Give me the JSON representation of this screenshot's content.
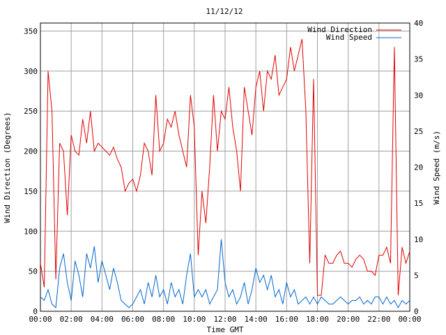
{
  "chart_data": {
    "type": "line",
    "title": "11/12/12",
    "xlabel": "Time GMT",
    "ylabel": "Wind Direction (Degrees)",
    "y2label": "Wind Speed (m/s)",
    "x_ticks": [
      "00:00",
      "02:00",
      "04:00",
      "06:00",
      "08:00",
      "10:00",
      "12:00",
      "14:00",
      "16:00",
      "18:00",
      "20:00",
      "22:00",
      "00:00"
    ],
    "ylim": [
      0,
      360
    ],
    "y_ticks": [
      0,
      50,
      100,
      150,
      200,
      250,
      300,
      350
    ],
    "y2lim": [
      0,
      40
    ],
    "y2_ticks": [
      0,
      5,
      10,
      15,
      20,
      25,
      30,
      35,
      40
    ],
    "grid": true,
    "legend_position": "top-right",
    "colors": {
      "direction": "#e00000",
      "speed": "#0066cc",
      "grid": "#a0a0a0"
    },
    "series": [
      {
        "name": "Wind Direction",
        "axis": "left",
        "x_hours": [
          0.0,
          0.25,
          0.5,
          0.75,
          1.0,
          1.25,
          1.5,
          1.75,
          2.0,
          2.25,
          2.5,
          2.75,
          3.0,
          3.25,
          3.5,
          3.75,
          4.0,
          4.25,
          4.5,
          4.75,
          5.0,
          5.25,
          5.5,
          5.75,
          6.0,
          6.25,
          6.5,
          6.75,
          7.0,
          7.25,
          7.5,
          7.75,
          8.0,
          8.25,
          8.5,
          8.75,
          9.0,
          9.25,
          9.5,
          9.75,
          10.0,
          10.25,
          10.5,
          10.75,
          11.0,
          11.25,
          11.5,
          11.75,
          12.0,
          12.25,
          12.5,
          12.75,
          13.0,
          13.25,
          13.5,
          13.75,
          14.0,
          14.25,
          14.5,
          14.75,
          15.0,
          15.25,
          15.5,
          15.75,
          16.0,
          16.25,
          16.5,
          16.75,
          17.0,
          17.25,
          17.5,
          17.75,
          18.0,
          18.25,
          18.5,
          18.75,
          19.0,
          19.25,
          19.5,
          19.75,
          20.0,
          20.25,
          20.5,
          20.75,
          21.0,
          21.25,
          21.5,
          21.75,
          22.0,
          22.25,
          22.5,
          22.75,
          23.0,
          23.25,
          23.5,
          23.75,
          24.0
        ],
        "values": [
          60,
          30,
          300,
          250,
          40,
          210,
          200,
          120,
          220,
          200,
          195,
          240,
          210,
          250,
          200,
          210,
          205,
          200,
          195,
          205,
          190,
          180,
          150,
          160,
          165,
          150,
          170,
          210,
          200,
          170,
          270,
          200,
          210,
          240,
          230,
          250,
          220,
          200,
          180,
          270,
          230,
          70,
          150,
          110,
          180,
          270,
          200,
          250,
          240,
          280,
          230,
          200,
          150,
          280,
          250,
          220,
          280,
          300,
          250,
          300,
          290,
          320,
          270,
          280,
          290,
          330,
          300,
          320,
          340,
          250,
          60,
          290,
          20,
          20,
          70,
          60,
          60,
          70,
          75,
          60,
          60,
          55,
          65,
          70,
          65,
          50,
          50,
          45,
          70,
          70,
          80,
          60,
          330,
          20,
          80,
          60,
          75
        ]
      },
      {
        "name": "Wind Speed",
        "axis": "right",
        "x_hours": [
          0.0,
          0.25,
          0.5,
          0.75,
          1.0,
          1.25,
          1.5,
          1.75,
          2.0,
          2.25,
          2.5,
          2.75,
          3.0,
          3.25,
          3.5,
          3.75,
          4.0,
          4.25,
          4.5,
          4.75,
          5.0,
          5.25,
          5.5,
          5.75,
          6.0,
          6.25,
          6.5,
          6.75,
          7.0,
          7.25,
          7.5,
          7.75,
          8.0,
          8.25,
          8.5,
          8.75,
          9.0,
          9.25,
          9.5,
          9.75,
          10.0,
          10.25,
          10.5,
          10.75,
          11.0,
          11.25,
          11.5,
          11.75,
          12.0,
          12.25,
          12.5,
          12.75,
          13.0,
          13.25,
          13.5,
          13.75,
          14.0,
          14.25,
          14.5,
          14.75,
          15.0,
          15.25,
          15.5,
          15.75,
          16.0,
          16.25,
          16.5,
          16.75,
          17.0,
          17.25,
          17.5,
          17.75,
          18.0,
          18.25,
          18.5,
          18.75,
          19.0,
          19.25,
          19.5,
          19.75,
          20.0,
          20.25,
          20.5,
          20.75,
          21.0,
          21.25,
          21.5,
          21.75,
          22.0,
          22.25,
          22.5,
          22.75,
          23.0,
          23.25,
          23.5,
          23.75,
          24.0
        ],
        "values": [
          2,
          1.5,
          3,
          1,
          0.5,
          6,
          8,
          4,
          1.5,
          7,
          5,
          2,
          8,
          6,
          9,
          4,
          7,
          5,
          3,
          6,
          4,
          1.5,
          1,
          0.5,
          1,
          2,
          3,
          1,
          4,
          2,
          5,
          2,
          3,
          1,
          4,
          2,
          3,
          1,
          5,
          8,
          2,
          3,
          2,
          3,
          1,
          2,
          3,
          10,
          4,
          2,
          3,
          1,
          2,
          4,
          1,
          3,
          6,
          4,
          5,
          3,
          5,
          2,
          3,
          1,
          4,
          2,
          3,
          1,
          1.5,
          2,
          1,
          2,
          1,
          2,
          1.5,
          1,
          1,
          1.5,
          2,
          1.5,
          1,
          1.5,
          1.5,
          2,
          1,
          1.5,
          1,
          2,
          2,
          1,
          2,
          1,
          1.5,
          0.5,
          1.5,
          1,
          1.5
        ]
      }
    ]
  }
}
